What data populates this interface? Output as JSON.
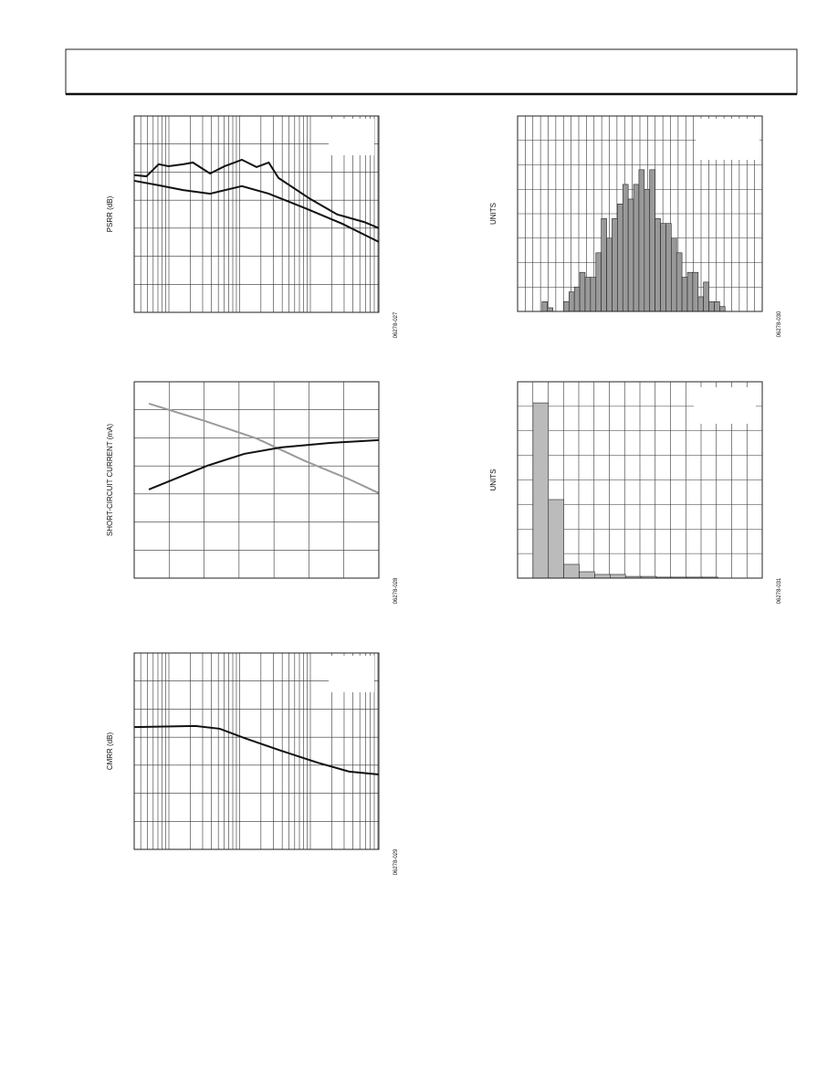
{
  "chart_data": [
    {
      "type": "line",
      "y_label": "PSRR (dB)",
      "figure_code": "06278-027",
      "xlim": [
        0,
        100
      ],
      "ylim": [
        0,
        7
      ],
      "series": [
        {
          "color": "#111111",
          "x": [
            0,
            5,
            10,
            14,
            20,
            24,
            31,
            37,
            44,
            50,
            55,
            59,
            72,
            83,
            94,
            100
          ],
          "values": [
            4.89,
            4.85,
            5.28,
            5.21,
            5.28,
            5.34,
            4.95,
            5.21,
            5.44,
            5.18,
            5.34,
            4.79,
            4.04,
            3.49,
            3.22,
            3.0
          ]
        },
        {
          "color": "#111111",
          "x": [
            0,
            10,
            20,
            31,
            44,
            55,
            70,
            85,
            100
          ],
          "values": [
            4.69,
            4.53,
            4.36,
            4.23,
            4.5,
            4.23,
            3.71,
            3.16,
            2.51
          ]
        }
      ]
    },
    {
      "type": "histogram",
      "y_label": "UNITS",
      "figure_code": "06278-030",
      "xlim": [
        0,
        100
      ],
      "ylim": [
        0,
        8
      ],
      "color": "#999999",
      "bins": [
        10,
        12.2,
        14.4,
        16.6,
        18.8,
        21,
        23.2,
        25.4,
        27.6,
        29.8,
        32,
        34.2,
        36.4,
        38.6,
        40.8,
        43,
        45.2,
        47.4,
        49.6,
        51.8,
        54,
        56.2,
        58.4,
        60.6,
        62.8,
        65,
        67.2,
        69.4,
        71.6,
        73.8,
        76,
        78.2,
        80.4,
        82.6,
        84.8,
        87,
        89.2,
        91.4
      ],
      "values": [
        0.4,
        0.15,
        0,
        0,
        0.4,
        0.8,
        1.0,
        1.6,
        1.4,
        1.4,
        2.4,
        3.8,
        3.0,
        3.8,
        4.4,
        5.2,
        4.6,
        5.2,
        5.8,
        5.0,
        5.8,
        3.8,
        3.6,
        3.6,
        3.0,
        2.4,
        1.4,
        1.6,
        1.6,
        0.6,
        1.2,
        0.4,
        0.4,
        0.2,
        0,
        0,
        0
      ]
    },
    {
      "type": "line",
      "y_label": "SHORT-CIRCUIT CURRENT (mA)",
      "figure_code": "06278-028",
      "xlim": [
        0,
        100
      ],
      "ylim": [
        0,
        7
      ],
      "series": [
        {
          "color": "#999999",
          "x": [
            6,
            30,
            50,
            70,
            88,
            100
          ],
          "values": [
            6.22,
            5.57,
            4.98,
            4.17,
            3.52,
            3.03
          ]
        },
        {
          "color": "#111111",
          "x": [
            6,
            30,
            45,
            60,
            80,
            100
          ],
          "values": [
            3.16,
            4.01,
            4.43,
            4.66,
            4.82,
            4.92
          ]
        }
      ]
    },
    {
      "type": "histogram",
      "y_label": "UNITS",
      "figure_code": "06278-031",
      "xlim": [
        0,
        100
      ],
      "ylim": [
        0,
        8
      ],
      "color": "#bbbbbb",
      "bins": [
        6.3,
        12.6,
        18.9,
        25.2,
        31.5,
        37.8,
        44.1,
        50.4,
        56.7,
        63,
        69.3,
        75.6,
        81.9
      ],
      "values": [
        7.14,
        3.2,
        0.56,
        0.26,
        0.15,
        0.15,
        0.07,
        0.07,
        0.04,
        0.04,
        0.04,
        0.04
      ]
    },
    {
      "type": "line",
      "y_label": "CMRR (dB)",
      "figure_code": "06278-029",
      "xlim": [
        0,
        100
      ],
      "ylim": [
        0,
        7
      ],
      "series": [
        {
          "color": "#111111",
          "x": [
            0,
            25,
            35,
            45,
            60,
            75,
            88,
            100
          ],
          "values": [
            4.36,
            4.4,
            4.3,
            3.97,
            3.52,
            3.09,
            2.77,
            2.67
          ]
        }
      ]
    }
  ]
}
